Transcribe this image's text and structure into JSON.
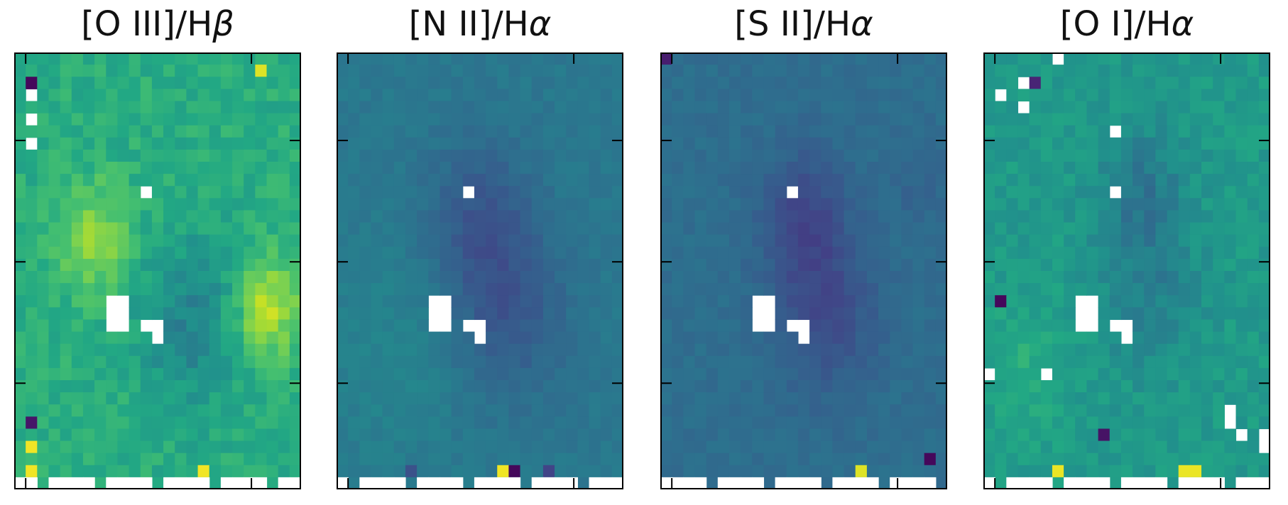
{
  "chart_data": [
    {
      "type": "heatmap",
      "title_main": "[O III]/H",
      "title_greek": "β",
      "colormap": "viridis",
      "grid": false,
      "style": {
        "base": 0.62,
        "amp": 0.32,
        "blobs": [
          [
            0.28,
            0.42,
            0.12,
            0.22
          ],
          [
            0.88,
            0.58,
            0.12,
            0.28
          ],
          [
            0.62,
            0.62,
            0.18,
            -0.18
          ]
        ],
        "noise": 0.12,
        "seed": 11
      },
      "masked": [
        [
          1,
          3
        ],
        [
          1,
          5
        ],
        [
          1,
          7
        ],
        [
          11,
          11
        ],
        [
          8,
          20
        ],
        [
          8,
          21
        ],
        [
          8,
          22
        ],
        [
          9,
          20
        ],
        [
          9,
          21
        ],
        [
          9,
          22
        ],
        [
          11,
          22
        ],
        [
          12,
          22
        ],
        [
          12,
          23
        ]
      ],
      "extremes": [
        [
          1,
          2,
          0.02
        ],
        [
          1,
          30,
          0.06
        ],
        [
          1,
          32,
          0.98
        ],
        [
          1,
          34,
          0.98
        ],
        [
          16,
          34,
          0.98
        ],
        [
          21,
          1,
          0.95
        ]
      ]
    },
    {
      "type": "heatmap",
      "title_main": "[N II]/H",
      "title_greek": "α",
      "colormap": "viridis",
      "grid": false,
      "style": {
        "base": 0.4,
        "amp": 0.18,
        "blobs": [
          [
            0.5,
            0.38,
            0.18,
            -0.12
          ],
          [
            0.6,
            0.6,
            0.2,
            -0.12
          ],
          [
            0.2,
            0.7,
            0.25,
            0.05
          ]
        ],
        "noise": 0.05,
        "seed": 23
      },
      "masked": [
        [
          11,
          11
        ],
        [
          8,
          20
        ],
        [
          8,
          21
        ],
        [
          8,
          22
        ],
        [
          9,
          20
        ],
        [
          9,
          21
        ],
        [
          9,
          22
        ],
        [
          11,
          22
        ],
        [
          12,
          22
        ],
        [
          12,
          23
        ]
      ],
      "extremes": [
        [
          14,
          34,
          0.98
        ],
        [
          15,
          34,
          0.02
        ],
        [
          6,
          34,
          0.25
        ],
        [
          18,
          34,
          0.2
        ]
      ]
    },
    {
      "type": "heatmap",
      "title_main": "[S II]/H",
      "title_greek": "α",
      "colormap": "viridis",
      "grid": false,
      "style": {
        "base": 0.36,
        "amp": 0.16,
        "blobs": [
          [
            0.5,
            0.38,
            0.15,
            -0.14
          ],
          [
            0.58,
            0.6,
            0.18,
            -0.12
          ],
          [
            0.9,
            0.3,
            0.1,
            -0.04
          ]
        ],
        "noise": 0.05,
        "seed": 37
      },
      "masked": [
        [
          11,
          11
        ],
        [
          8,
          20
        ],
        [
          8,
          21
        ],
        [
          8,
          22
        ],
        [
          9,
          20
        ],
        [
          9,
          21
        ],
        [
          9,
          22
        ],
        [
          11,
          22
        ],
        [
          12,
          22
        ],
        [
          12,
          23
        ]
      ],
      "extremes": [
        [
          23,
          33,
          0.02
        ],
        [
          17,
          34,
          0.95
        ],
        [
          0,
          0,
          0.08
        ]
      ]
    },
    {
      "type": "heatmap",
      "title_main": "[O I]/H",
      "title_greek": "α",
      "colormap": "viridis",
      "grid": false,
      "style": {
        "base": 0.54,
        "amp": 0.2,
        "blobs": [
          [
            0.55,
            0.32,
            0.15,
            -0.14
          ],
          [
            0.58,
            0.55,
            0.18,
            -0.1
          ],
          [
            0.15,
            0.72,
            0.15,
            0.08
          ]
        ],
        "noise": 0.1,
        "seed": 53
      },
      "masked": [
        [
          6,
          0
        ],
        [
          3,
          2
        ],
        [
          1,
          3
        ],
        [
          3,
          4
        ],
        [
          11,
          6
        ],
        [
          11,
          11
        ],
        [
          8,
          20
        ],
        [
          8,
          21
        ],
        [
          8,
          22
        ],
        [
          9,
          20
        ],
        [
          9,
          21
        ],
        [
          9,
          22
        ],
        [
          11,
          22
        ],
        [
          12,
          22
        ],
        [
          12,
          23
        ],
        [
          0,
          26
        ],
        [
          5,
          26
        ],
        [
          21,
          29
        ],
        [
          21,
          30
        ],
        [
          22,
          31
        ],
        [
          24,
          31
        ],
        [
          24,
          32
        ]
      ],
      "extremes": [
        [
          1,
          20,
          0.02
        ],
        [
          4,
          2,
          0.1
        ],
        [
          10,
          31,
          0.05
        ],
        [
          21,
          30,
          0.03
        ],
        [
          6,
          34,
          0.97
        ],
        [
          17,
          34,
          0.97
        ],
        [
          18,
          34,
          0.97
        ]
      ]
    }
  ]
}
